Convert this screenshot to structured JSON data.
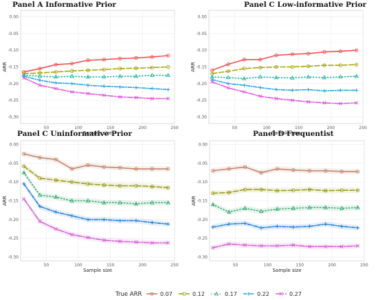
{
  "chart_data": [
    {
      "type": "line",
      "title": "Panel A Informative Prior",
      "xlabel": "Sample size",
      "ylabel": "ARR",
      "xlim": [
        10,
        250
      ],
      "ylim": [
        -0.32,
        0.02
      ],
      "xticks": [
        50,
        100,
        150,
        200,
        250
      ],
      "yticks": [
        0.0,
        -0.05,
        -0.1,
        -0.15,
        -0.2,
        -0.25,
        -0.3
      ],
      "x": [
        15,
        40,
        65,
        90,
        115,
        140,
        165,
        190,
        215,
        240
      ],
      "series": [
        {
          "name": "0.07",
          "values": [
            -0.165,
            -0.155,
            -0.143,
            -0.14,
            -0.13,
            -0.128,
            -0.125,
            -0.123,
            -0.12,
            -0.116
          ]
        },
        {
          "name": "0.12",
          "values": [
            -0.17,
            -0.168,
            -0.165,
            -0.162,
            -0.16,
            -0.158,
            -0.155,
            -0.154,
            -0.152,
            -0.15
          ]
        },
        {
          "name": "0.17",
          "values": [
            -0.175,
            -0.178,
            -0.18,
            -0.178,
            -0.18,
            -0.18,
            -0.178,
            -0.178,
            -0.175,
            -0.175
          ]
        },
        {
          "name": "0.22",
          "values": [
            -0.178,
            -0.19,
            -0.198,
            -0.2,
            -0.205,
            -0.208,
            -0.21,
            -0.212,
            -0.215,
            -0.218
          ]
        },
        {
          "name": "0.27",
          "values": [
            -0.183,
            -0.205,
            -0.215,
            -0.225,
            -0.23,
            -0.235,
            -0.24,
            -0.242,
            -0.245,
            -0.245
          ]
        }
      ]
    },
    {
      "type": "line",
      "title": "Panel C Low-informative Prior",
      "xlabel": "Sample size",
      "ylabel": "ARR",
      "xlim": [
        10,
        250
      ],
      "ylim": [
        -0.32,
        0.02
      ],
      "xticks": [
        50,
        100,
        150,
        200,
        250
      ],
      "yticks": [
        0.0,
        -0.05,
        -0.1,
        -0.15,
        -0.2,
        -0.25,
        -0.3
      ],
      "x": [
        15,
        40,
        65,
        90,
        115,
        140,
        165,
        190,
        215,
        240
      ],
      "series": [
        {
          "name": "0.07",
          "values": [
            -0.16,
            -0.142,
            -0.128,
            -0.128,
            -0.115,
            -0.112,
            -0.11,
            -0.105,
            -0.103,
            -0.1
          ]
        },
        {
          "name": "0.12",
          "values": [
            -0.17,
            -0.163,
            -0.155,
            -0.152,
            -0.15,
            -0.15,
            -0.148,
            -0.145,
            -0.145,
            -0.143
          ]
        },
        {
          "name": "0.17",
          "values": [
            -0.18,
            -0.182,
            -0.185,
            -0.18,
            -0.182,
            -0.183,
            -0.18,
            -0.182,
            -0.18,
            -0.178
          ]
        },
        {
          "name": "0.22",
          "values": [
            -0.188,
            -0.2,
            -0.205,
            -0.212,
            -0.218,
            -0.22,
            -0.218,
            -0.222,
            -0.22,
            -0.22
          ]
        },
        {
          "name": "0.27",
          "values": [
            -0.195,
            -0.213,
            -0.225,
            -0.238,
            -0.245,
            -0.25,
            -0.255,
            -0.258,
            -0.26,
            -0.258
          ]
        }
      ]
    },
    {
      "type": "line",
      "title": "Panel C Uninformative Prior",
      "xlabel": "Sample size",
      "ylabel": "ARR",
      "xlim": [
        10,
        250
      ],
      "ylim": [
        -0.31,
        0.01
      ],
      "xticks": [
        50,
        100,
        150,
        200,
        250
      ],
      "yticks": [
        0.0,
        -0.05,
        -0.1,
        -0.15,
        -0.2,
        -0.25,
        -0.3
      ],
      "x": [
        15,
        40,
        65,
        90,
        115,
        140,
        165,
        190,
        215,
        240
      ],
      "series": [
        {
          "name": "0.07",
          "values": [
            -0.025,
            -0.035,
            -0.04,
            -0.065,
            -0.055,
            -0.06,
            -0.062,
            -0.065,
            -0.065,
            -0.065
          ]
        },
        {
          "name": "0.12",
          "values": [
            -0.058,
            -0.09,
            -0.095,
            -0.1,
            -0.105,
            -0.108,
            -0.11,
            -0.11,
            -0.112,
            -0.115
          ]
        },
        {
          "name": "0.17",
          "values": [
            -0.075,
            -0.135,
            -0.14,
            -0.15,
            -0.15,
            -0.155,
            -0.155,
            -0.158,
            -0.155,
            -0.155
          ]
        },
        {
          "name": "0.22",
          "values": [
            -0.105,
            -0.165,
            -0.18,
            -0.19,
            -0.2,
            -0.2,
            -0.203,
            -0.203,
            -0.208,
            -0.212
          ]
        },
        {
          "name": "0.27",
          "values": [
            -0.145,
            -0.205,
            -0.225,
            -0.24,
            -0.248,
            -0.255,
            -0.258,
            -0.26,
            -0.262,
            -0.262
          ]
        }
      ]
    },
    {
      "type": "line",
      "title": "Panel D Frequentist",
      "xlabel": "Sample size",
      "ylabel": "ARR",
      "xlim": [
        10,
        250
      ],
      "ylim": [
        -0.31,
        0.01
      ],
      "xticks": [
        50,
        100,
        150,
        200,
        250
      ],
      "yticks": [
        0.0,
        -0.05,
        -0.1,
        -0.15,
        -0.2,
        -0.25,
        -0.3
      ],
      "x": [
        15,
        40,
        65,
        90,
        115,
        140,
        165,
        190,
        215,
        240
      ],
      "series": [
        {
          "name": "0.07",
          "values": [
            -0.07,
            -0.065,
            -0.06,
            -0.075,
            -0.065,
            -0.068,
            -0.07,
            -0.07,
            -0.072,
            -0.072
          ]
        },
        {
          "name": "0.12",
          "values": [
            -0.13,
            -0.128,
            -0.12,
            -0.12,
            -0.123,
            -0.122,
            -0.12,
            -0.123,
            -0.122,
            -0.122
          ]
        },
        {
          "name": "0.17",
          "values": [
            -0.16,
            -0.18,
            -0.17,
            -0.178,
            -0.172,
            -0.17,
            -0.168,
            -0.168,
            -0.17,
            -0.168
          ]
        },
        {
          "name": "0.22",
          "values": [
            -0.22,
            -0.212,
            -0.21,
            -0.222,
            -0.218,
            -0.22,
            -0.218,
            -0.212,
            -0.218,
            -0.222
          ]
        },
        {
          "name": "0.27",
          "values": [
            -0.275,
            -0.265,
            -0.268,
            -0.27,
            -0.27,
            -0.268,
            -0.272,
            -0.272,
            -0.272,
            -0.27
          ]
        }
      ]
    }
  ],
  "legend": {
    "title": "True ARR",
    "position": "bottom",
    "items": [
      {
        "label": "0.07",
        "color": "#c1826a",
        "marker": "circle",
        "dash": "solid"
      },
      {
        "label": "0.12",
        "color": "#9a9a1a",
        "marker": "circle",
        "dash": "long-dash"
      },
      {
        "label": "0.17",
        "color": "#33a66e",
        "marker": "triangle",
        "dash": "dotted"
      },
      {
        "label": "0.22",
        "color": "#1f9dd6",
        "marker": "plus",
        "dash": "dash-dot"
      },
      {
        "label": "0.27",
        "color": "#d35fd3",
        "marker": "cross",
        "dash": "long-dash-dot"
      }
    ]
  },
  "panel_styles": [
    {
      "colors": [
        "#f04f4f",
        "#a6a600",
        "#17b398",
        "#1fa0e0",
        "#e056e0"
      ],
      "grid": true,
      "band": false
    },
    {
      "colors": [
        "#f04f4f",
        "#a6a600",
        "#17b398",
        "#1fa0e0",
        "#e056e0"
      ],
      "grid": true,
      "band": false
    },
    {
      "colors": [
        "#c1826a",
        "#9a9a1a",
        "#33a66e",
        "#1f7bd6",
        "#d35fd3"
      ],
      "grid": true,
      "band": true
    },
    {
      "colors": [
        "#c1826a",
        "#9a9a1a",
        "#33a66e",
        "#1f7bd6",
        "#d35fd3"
      ],
      "grid": true,
      "band": true
    }
  ]
}
